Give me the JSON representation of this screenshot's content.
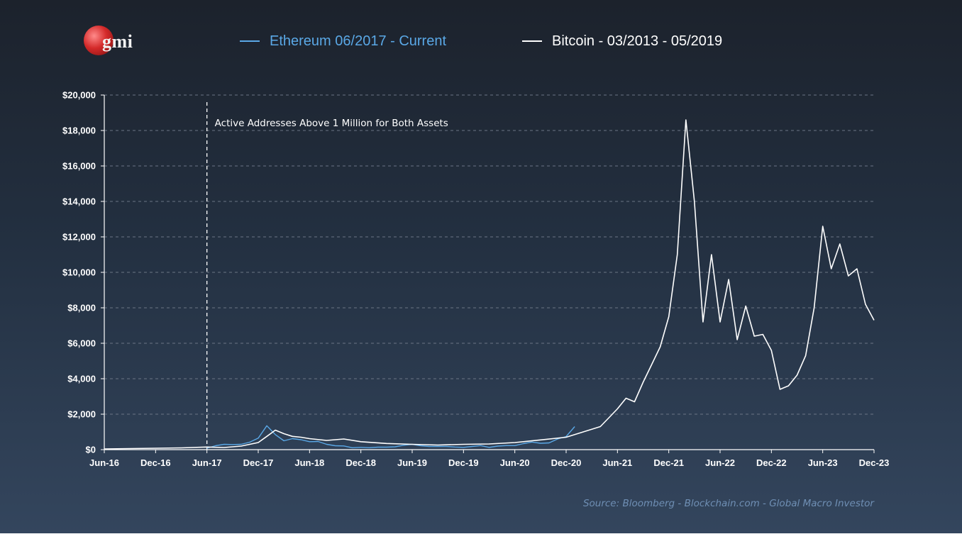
{
  "logo": {
    "text": "gmi",
    "icon": "red-globe-icon"
  },
  "source": "Source: Bloomberg - Blockchain.com - Global Macro Investor",
  "colors": {
    "ethereum": "#5aa8e6",
    "bitcoin": "#ffffff",
    "grid": "#6b7585"
  },
  "chart_data": {
    "type": "line",
    "title": "",
    "xlabel": "",
    "ylabel": "",
    "ylim": [
      0,
      20000
    ],
    "x_tick_labels": [
      "Jun-16",
      "Dec-16",
      "Jun-17",
      "Dec-17",
      "Jun-18",
      "Dec-18",
      "Jun-19",
      "Dec-19",
      "Jun-20",
      "Dec-20",
      "Jun-21",
      "Dec-21",
      "Jun-22",
      "Dec-22",
      "Jun-23",
      "Dec-23"
    ],
    "y_tick_labels": [
      "$0",
      "$2,000",
      "$4,000",
      "$6,000",
      "$8,000",
      "$10,000",
      "$12,000",
      "$14,000",
      "$16,000",
      "$18,000",
      "$20,000"
    ],
    "grid": true,
    "legend_position": "top",
    "annotation": {
      "text": "Active  Addresses Above 1 Million for Both Assets",
      "x": "Jun-17"
    },
    "series": [
      {
        "name": "Ethereum 06/2017 - Current",
        "color": "#5aa8e6",
        "points": [
          [
            "Jun-17",
            80
          ],
          [
            "Jul-17",
            220
          ],
          [
            "Aug-17",
            300
          ],
          [
            "Sep-17",
            290
          ],
          [
            "Oct-17",
            300
          ],
          [
            "Nov-17",
            420
          ],
          [
            "Dec-17",
            650
          ],
          [
            "Jan-18",
            1350
          ],
          [
            "Feb-18",
            850
          ],
          [
            "Mar-18",
            500
          ],
          [
            "Apr-18",
            620
          ],
          [
            "May-18",
            560
          ],
          [
            "Jun-18",
            450
          ],
          [
            "Jul-18",
            460
          ],
          [
            "Aug-18",
            300
          ],
          [
            "Sep-18",
            220
          ],
          [
            "Oct-18",
            210
          ],
          [
            "Nov-18",
            110
          ],
          [
            "Dec-18",
            130
          ],
          [
            "Jan-19",
            110
          ],
          [
            "Feb-19",
            140
          ],
          [
            "Mar-19",
            140
          ],
          [
            "Apr-19",
            160
          ],
          [
            "May-19",
            250
          ],
          [
            "Jun-19",
            300
          ],
          [
            "Jul-19",
            220
          ],
          [
            "Aug-19",
            180
          ],
          [
            "Sep-19",
            180
          ],
          [
            "Oct-19",
            180
          ],
          [
            "Nov-19",
            150
          ],
          [
            "Dec-19",
            130
          ],
          [
            "Jan-20",
            180
          ],
          [
            "Feb-20",
            230
          ],
          [
            "Mar-20",
            130
          ],
          [
            "Apr-20",
            200
          ],
          [
            "May-20",
            230
          ],
          [
            "Jun-20",
            230
          ],
          [
            "Jul-20",
            340
          ],
          [
            "Aug-20",
            430
          ],
          [
            "Sep-20",
            360
          ],
          [
            "Oct-20",
            380
          ],
          [
            "Nov-20",
            600
          ],
          [
            "Dec-20",
            740
          ],
          [
            "Jan-21",
            1300
          ]
        ]
      },
      {
        "name": "Bitcoin - 03/2013 - 05/2019",
        "color": "#ffffff",
        "points": [
          [
            "Jun-16",
            40
          ],
          [
            "Sep-16",
            60
          ],
          [
            "Dec-16",
            80
          ],
          [
            "Mar-17",
            100
          ],
          [
            "Jun-17",
            150
          ],
          [
            "Aug-17",
            120
          ],
          [
            "Oct-17",
            200
          ],
          [
            "Dec-17",
            400
          ],
          [
            "Jan-18",
            750
          ],
          [
            "Feb-18",
            1100
          ],
          [
            "Mar-18",
            900
          ],
          [
            "Apr-18",
            750
          ],
          [
            "May-18",
            700
          ],
          [
            "Jun-18",
            620
          ],
          [
            "Aug-18",
            520
          ],
          [
            "Oct-18",
            600
          ],
          [
            "Dec-18",
            450
          ],
          [
            "Mar-19",
            350
          ],
          [
            "Jun-19",
            300
          ],
          [
            "Sep-19",
            260
          ],
          [
            "Dec-19",
            300
          ],
          [
            "Mar-20",
            320
          ],
          [
            "Jun-20",
            400
          ],
          [
            "Sep-20",
            550
          ],
          [
            "Dec-20",
            700
          ],
          [
            "Feb-21",
            1000
          ],
          [
            "Apr-21",
            1300
          ],
          [
            "May-21",
            1800
          ],
          [
            "Jun-21",
            2300
          ],
          [
            "Jul-21",
            2900
          ],
          [
            "Aug-21",
            2700
          ],
          [
            "Sep-21",
            3800
          ],
          [
            "Oct-21",
            4800
          ],
          [
            "Nov-21",
            5800
          ],
          [
            "Dec-21",
            7500
          ],
          [
            "Jan-22",
            11000
          ],
          [
            "Feb-22",
            18600
          ],
          [
            "Mar-22",
            14000
          ],
          [
            "Apr-22",
            7200
          ],
          [
            "May-22",
            11000
          ],
          [
            "Jun-22",
            7200
          ],
          [
            "Jul-22",
            9600
          ],
          [
            "Aug-22",
            6200
          ],
          [
            "Sep-22",
            8100
          ],
          [
            "Oct-22",
            6400
          ],
          [
            "Nov-22",
            6500
          ],
          [
            "Dec-22",
            5600
          ],
          [
            "Jan-23",
            3400
          ],
          [
            "Feb-23",
            3600
          ],
          [
            "Mar-23",
            4200
          ],
          [
            "Apr-23",
            5300
          ],
          [
            "May-23",
            8000
          ],
          [
            "Jun-23",
            12600
          ],
          [
            "Jul-23",
            10200
          ],
          [
            "Aug-23",
            11600
          ],
          [
            "Sep-23",
            9800
          ],
          [
            "Oct-23",
            10200
          ],
          [
            "Nov-23",
            8200
          ],
          [
            "Dec-23",
            7300
          ]
        ]
      }
    ]
  }
}
